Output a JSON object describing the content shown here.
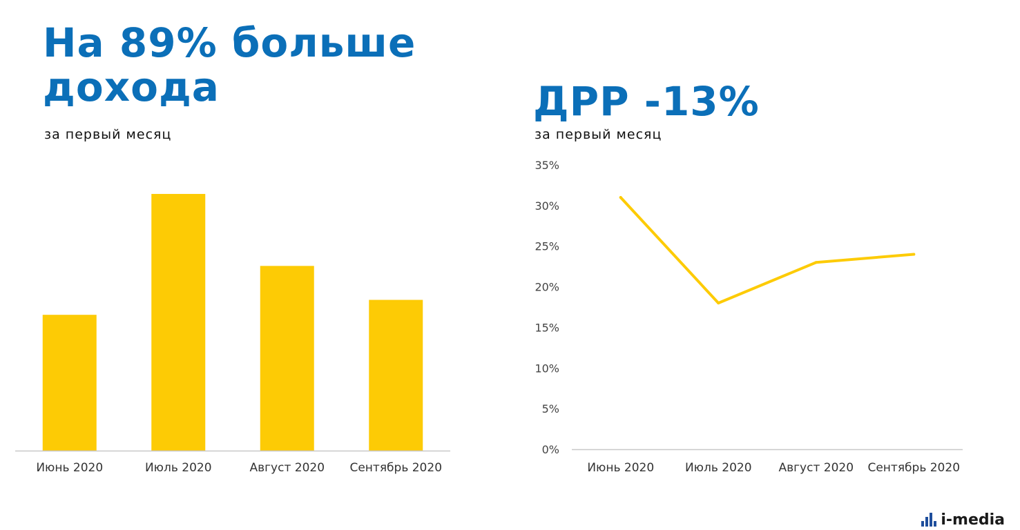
{
  "left_panel": {
    "title": "На 89% больше дохода",
    "subtitle": "за первый месяц"
  },
  "right_panel": {
    "title": "ДРР -13%",
    "subtitle": "за первый месяц"
  },
  "logo": {
    "text": "i-media",
    "icon": "bars-icon"
  },
  "colors": {
    "title": "#0b6fb8",
    "series": "#fdcb05",
    "logo_mark": "#1e4e9c"
  },
  "chart_data": [
    {
      "type": "bar",
      "categories": [
        "Июнь 2020",
        "Июль 2020",
        "Август 2020",
        "Сентябрь 2020"
      ],
      "values": [
        1.0,
        1.89,
        1.36,
        1.11
      ],
      "ylim": [
        0,
        2.2
      ],
      "title": "",
      "xlabel": "",
      "ylabel": "",
      "grid": false,
      "legend": "none"
    },
    {
      "type": "line",
      "categories": [
        "Июнь 2020",
        "Июль 2020",
        "Август 2020",
        "Сентябрь 2020"
      ],
      "values": [
        31,
        18,
        23,
        24
      ],
      "unit": "%",
      "ylim": [
        0,
        35
      ],
      "yticks": [
        "0%",
        "5%",
        "10%",
        "15%",
        "20%",
        "25%",
        "30%",
        "35%"
      ],
      "title": "",
      "xlabel": "",
      "ylabel": "",
      "grid": false,
      "legend": "none"
    }
  ]
}
